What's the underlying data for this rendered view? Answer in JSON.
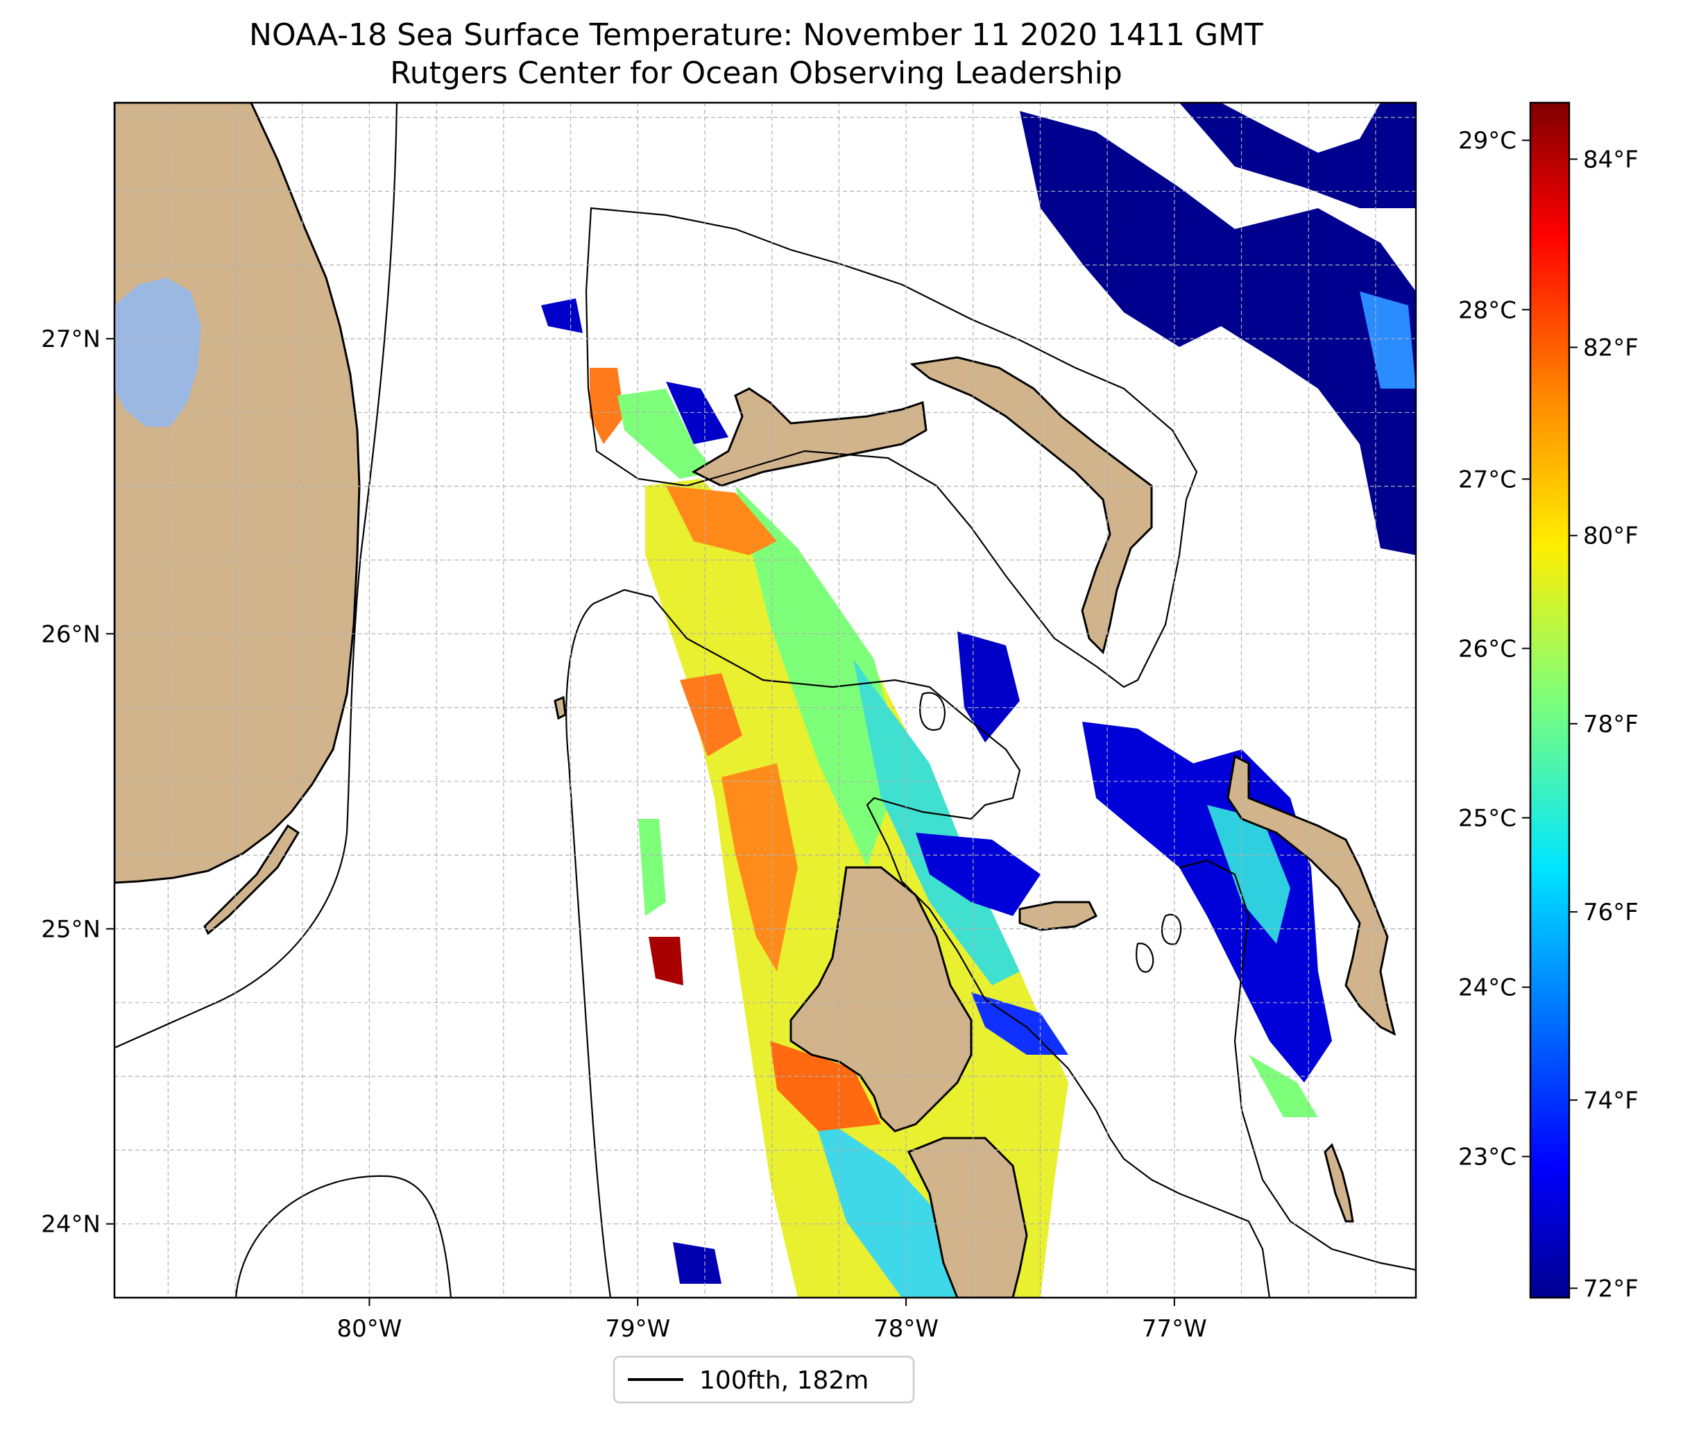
{
  "title": {
    "line1": "NOAA-18 Sea Surface Temperature: November 11 2020 1411 GMT",
    "line2": "Rutgers Center for Ocean Observing Leadership"
  },
  "map": {
    "lon_range": [
      -80.95,
      -76.1
    ],
    "lat_range": [
      23.75,
      27.8
    ],
    "gridlines": true,
    "x_ticks": [
      {
        "value": -80,
        "label": "80°W"
      },
      {
        "value": -79,
        "label": "79°W"
      },
      {
        "value": -78,
        "label": "78°W"
      },
      {
        "value": -77,
        "label": "77°W"
      }
    ],
    "y_ticks": [
      {
        "value": 27,
        "label": "27°N"
      },
      {
        "value": 26,
        "label": "26°N"
      },
      {
        "value": 25,
        "label": "25°N"
      },
      {
        "value": 24,
        "label": "24°N"
      }
    ]
  },
  "colorbar": {
    "colormap": "jet",
    "range_f": [
      71.9,
      84.6
    ],
    "celsius_ticks": [
      {
        "value": 29,
        "label": "29°C"
      },
      {
        "value": 28,
        "label": "28°C"
      },
      {
        "value": 27,
        "label": "27°C"
      },
      {
        "value": 26,
        "label": "26°C"
      },
      {
        "value": 25,
        "label": "25°C"
      },
      {
        "value": 24,
        "label": "24°C"
      },
      {
        "value": 23,
        "label": "23°C"
      }
    ],
    "fahrenheit_ticks": [
      {
        "value": 84,
        "label": "84°F"
      },
      {
        "value": 82,
        "label": "82°F"
      },
      {
        "value": 80,
        "label": "80°F"
      },
      {
        "value": 78,
        "label": "78°F"
      },
      {
        "value": 76,
        "label": "76°F"
      },
      {
        "value": 74,
        "label": "74°F"
      },
      {
        "value": 72,
        "label": "72°F"
      }
    ]
  },
  "legend": {
    "label": "100fth, 182m",
    "placement": "bottom-center"
  },
  "colors": {
    "land": "#d2b48c",
    "lake": "#9bb8e3",
    "grid": "#b0b0b0",
    "isobath": "#000000"
  }
}
